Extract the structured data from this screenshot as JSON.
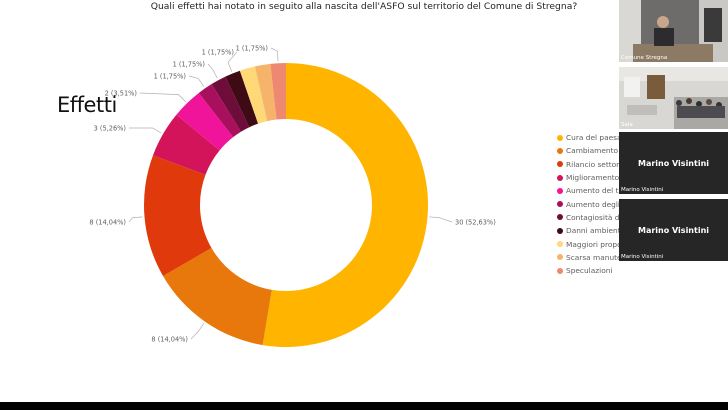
{
  "chart_data": {
    "type": "pie",
    "title": "Quali effetti hai notato in seguito alla nascita dell'ASFO sul territorio del Comune di Stregna?",
    "slices": [
      {
        "legend": "Cura del paesag",
        "value": 30,
        "label": "30 (52,63%)",
        "color": "#FFB400"
      },
      {
        "legend": "Cambiamento c",
        "value": 8,
        "label": "8 (14,04%)",
        "color": "#E8780C"
      },
      {
        "legend": "Rilancio settore",
        "value": 8,
        "label": "8 (14,04%)",
        "color": "#E03A0C"
      },
      {
        "legend": "Miglioramento a",
        "value": 3,
        "label": "3 (5,26%)",
        "color": "#D4145A"
      },
      {
        "legend": "Aumento del tu",
        "value": 2,
        "label": "2 (3,51%)",
        "color": "#F0149A"
      },
      {
        "legend": "Aumento degli",
        "value": 1,
        "label": "1 (1,75%)",
        "color": "#A8105E"
      },
      {
        "legend": "Contagiosità di",
        "value": 1,
        "label": "1 (1,75%)",
        "color": "#6E0C3A"
      },
      {
        "legend": "Danni ambienta",
        "value": 1,
        "label": "1 (1,75%)",
        "color": "#3E0A14"
      },
      {
        "legend": "Maggiori propo",
        "value": 1,
        "label": "1 (1,75%)",
        "color": "#FFD878"
      },
      {
        "legend": "Scarsa manutenzione",
        "value": 1,
        "label": "1 (1,75%)",
        "color": "#F5B46A"
      },
      {
        "legend": "Speculazioni",
        "value": 1,
        "label": "1 (1,75%)",
        "color": "#EE8870"
      }
    ]
  },
  "page": {
    "heading": "Effetti"
  },
  "video": {
    "tiles": [
      {
        "label": "Comune Stregna",
        "name": ""
      },
      {
        "label": "Sala",
        "name": ""
      },
      {
        "label": "Marino Visintini",
        "name": "Marino Visintini"
      },
      {
        "label": "Marino Visintini",
        "name": "Marino Visintini"
      }
    ]
  }
}
